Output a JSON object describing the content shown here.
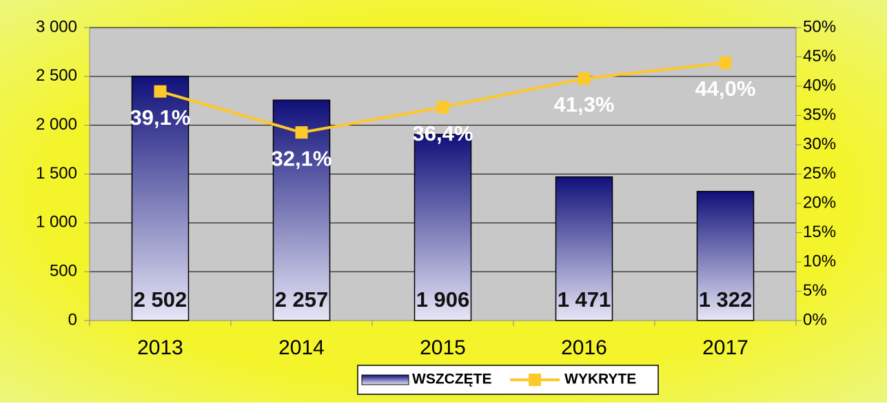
{
  "chart_data": {
    "type": "bar",
    "categories": [
      "2013",
      "2014",
      "2015",
      "2016",
      "2017"
    ],
    "series": [
      {
        "name": "WSZCZĘTE",
        "type": "bar",
        "color": "#1a1a80",
        "values": [
          2502,
          2257,
          1906,
          1471,
          1322
        ],
        "value_labels": [
          "2 502",
          "2 257",
          "1 906",
          "1 471",
          "1 322"
        ]
      },
      {
        "name": "WYKRYTE",
        "type": "line",
        "axis": "y2",
        "color": "#fcc82a",
        "values": [
          39.1,
          32.1,
          36.4,
          41.3,
          44.0
        ],
        "value_labels": [
          "39,1%",
          "32,1%",
          "36,4%",
          "41,3%",
          "44,0%"
        ]
      }
    ],
    "ylim": [
      0,
      3000
    ],
    "yticks": [
      0,
      500,
      {
        "value": 1000,
        "label": "1 000"
      },
      {
        "value": 1500,
        "label": "1 500"
      },
      {
        "value": 2000,
        "label": "2 000"
      },
      {
        "value": 2500,
        "label": "2 500"
      },
      {
        "value": 3000,
        "label": "3 000"
      }
    ],
    "y2lim": [
      0,
      50
    ],
    "y2ticks": [
      {
        "value": 0,
        "label": "0%"
      },
      {
        "value": 5,
        "label": "5%"
      },
      {
        "value": 10,
        "label": "10%"
      },
      {
        "value": 15,
        "label": "15%"
      },
      {
        "value": 20,
        "label": "20%"
      },
      {
        "value": 25,
        "label": "25%"
      },
      {
        "value": 30,
        "label": "30%"
      },
      {
        "value": 35,
        "label": "35%"
      },
      {
        "value": 40,
        "label": "40%"
      },
      {
        "value": 45,
        "label": "45%"
      },
      {
        "value": 50,
        "label": "50%"
      }
    ],
    "grid": true,
    "legend": "bottom"
  }
}
